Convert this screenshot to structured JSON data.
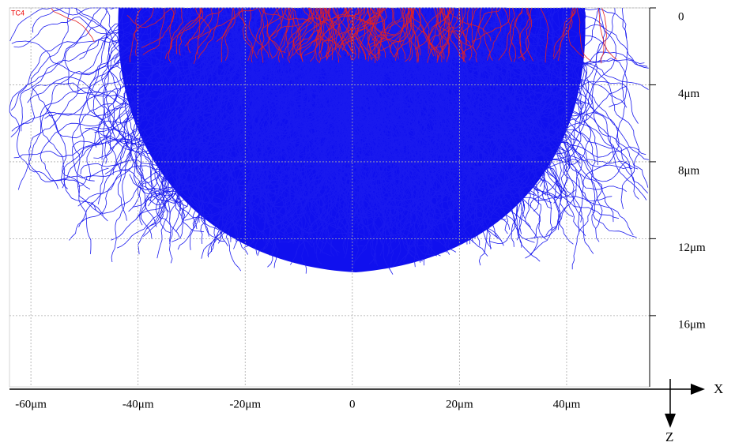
{
  "sample_label": "TC4",
  "x_axis": {
    "title": "X",
    "range": [
      -64,
      55.5
    ],
    "ticks": [
      {
        "value": -60,
        "label": "-60μm"
      },
      {
        "value": -40,
        "label": "-40μm"
      },
      {
        "value": -20,
        "label": "-20μm"
      },
      0,
      {
        "value": 20,
        "label": "20μm"
      },
      {
        "value": 40,
        "label": "40μm"
      }
    ]
  },
  "z_axis": {
    "title": "Z",
    "range": [
      0,
      19.7
    ],
    "ticks": [
      0,
      {
        "value": 4,
        "label": "4μm"
      },
      {
        "value": 8,
        "label": "8μm"
      },
      {
        "value": 12,
        "label": "12μm"
      },
      {
        "value": 16,
        "label": "16μm"
      }
    ]
  }
}
